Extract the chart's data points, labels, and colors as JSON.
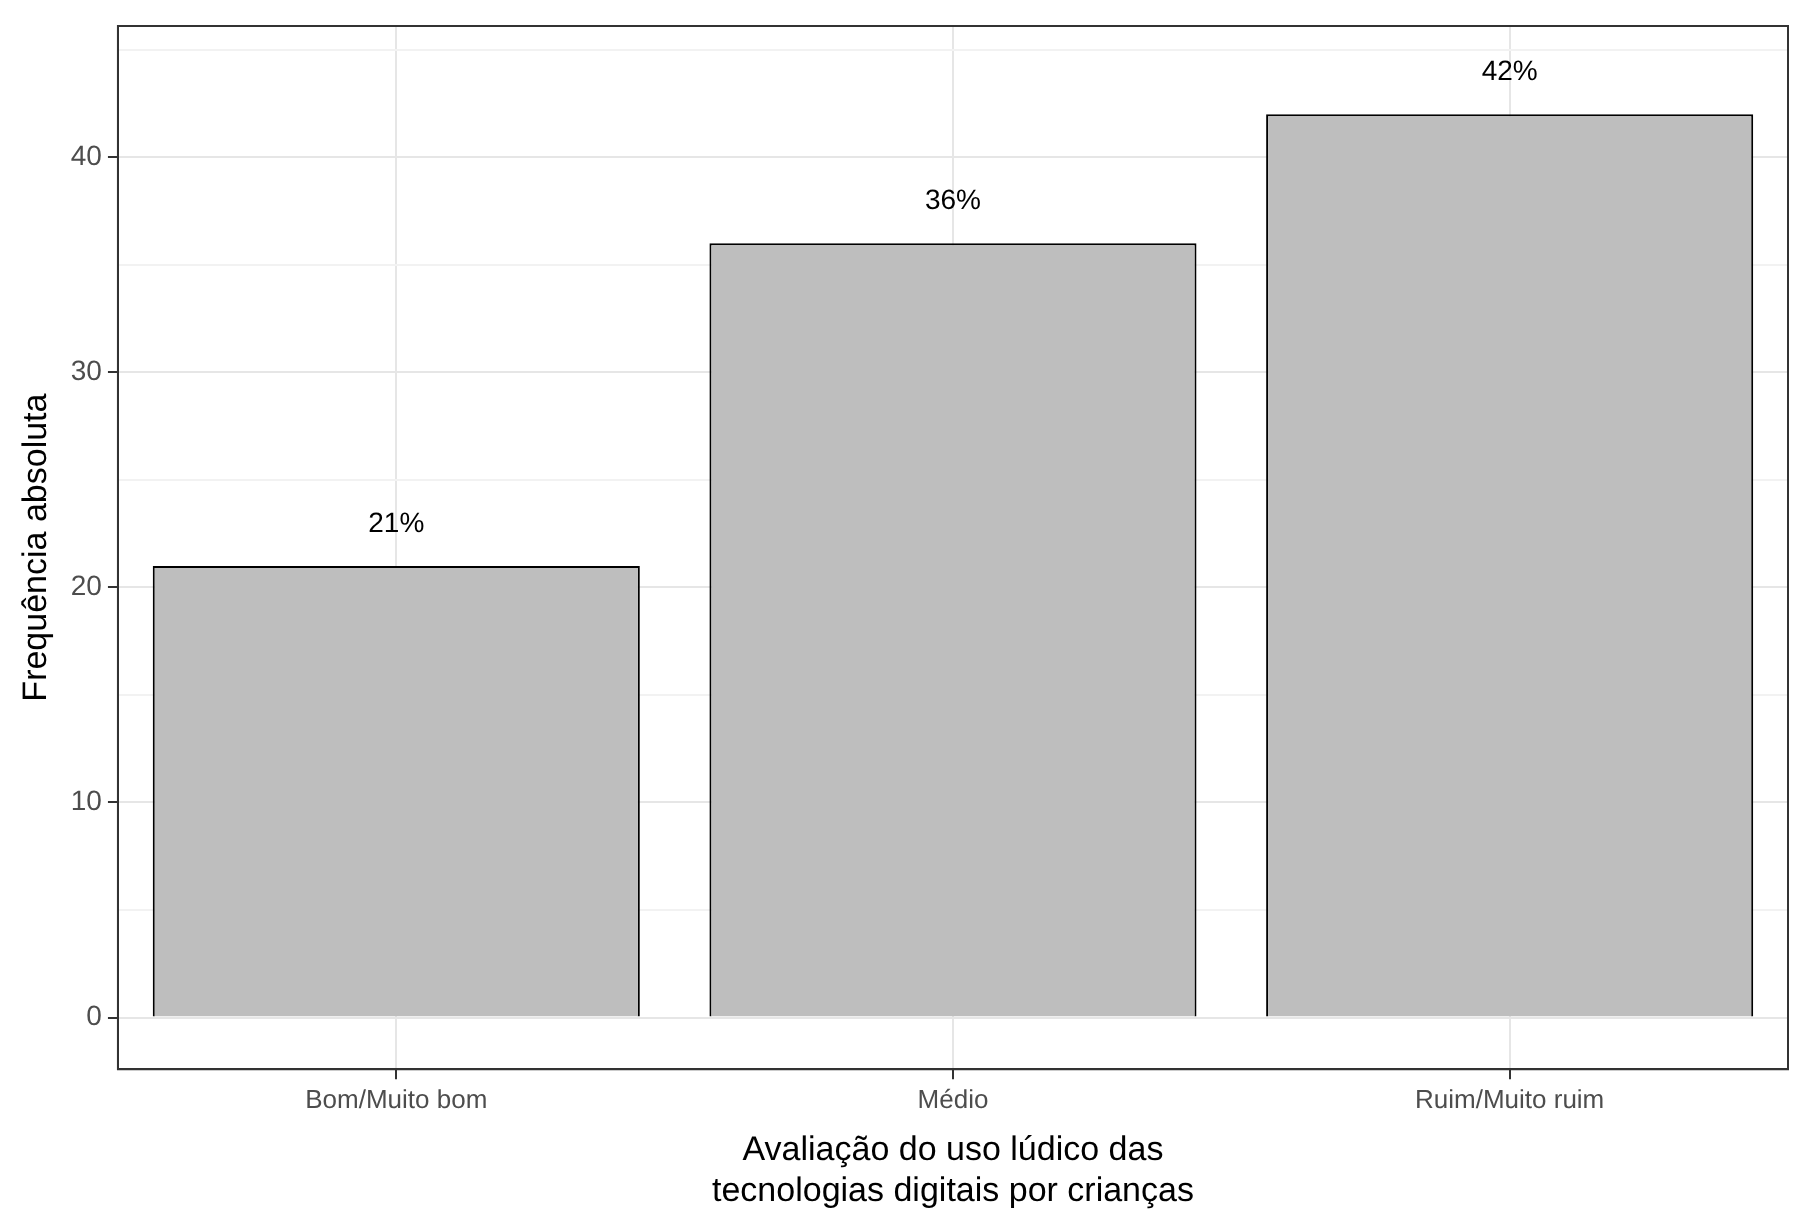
{
  "chart_data": {
    "type": "bar",
    "xlabel": "Avaliação do uso lúdico das\ntecnologias digitais por crianças",
    "ylabel": "Frequência absoluta",
    "categories": [
      "Bom/Muito bom",
      "Médio",
      "Ruim/Muito ruim"
    ],
    "values": [
      21,
      36,
      42
    ],
    "color": "#bebebe",
    "value_labels": [
      "21%",
      "36%",
      "42%"
    ],
    "ylim": [
      -2.4,
      46.1
    ],
    "yticks": [
      0,
      {
        "value": 5,
        "label": null
      },
      10,
      {
        "value": 15,
        "label": null
      },
      20,
      {
        "value": 25,
        "label": null
      },
      30,
      {
        "value": 35,
        "label": null
      },
      40,
      {
        "value": 45,
        "label": null
      }
    ],
    "grid": true,
    "legend": false
  }
}
